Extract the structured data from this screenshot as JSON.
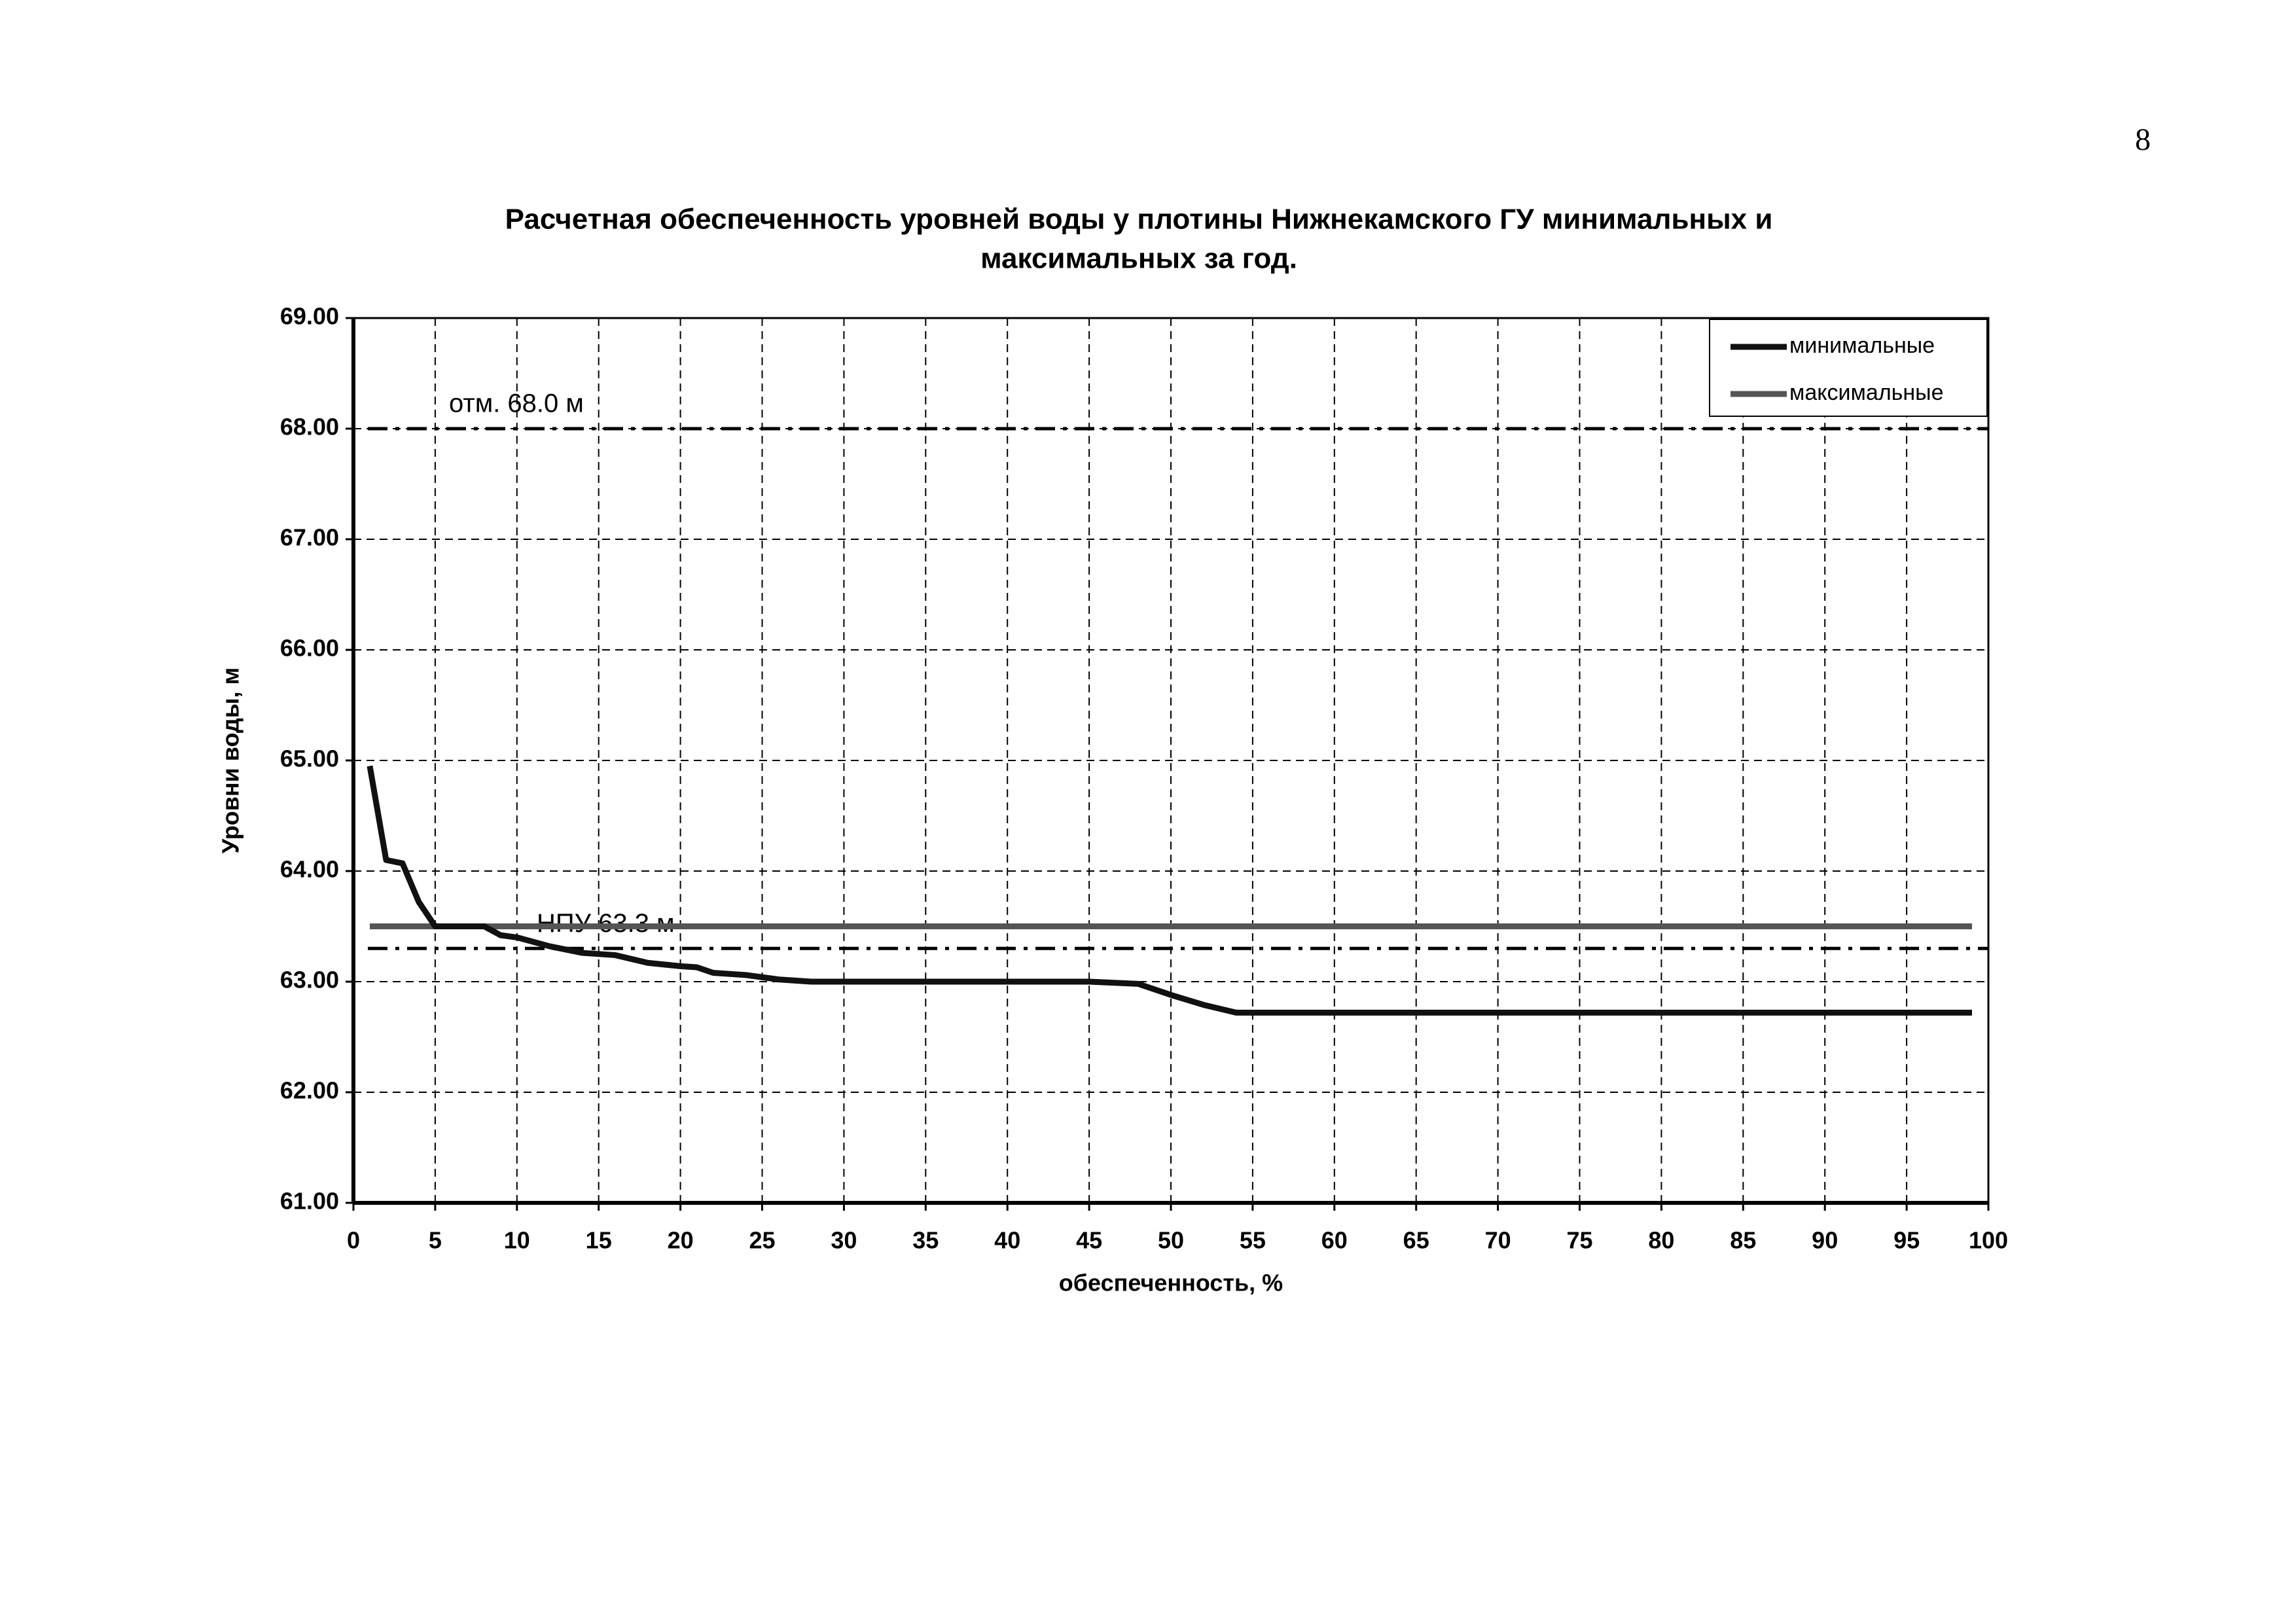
{
  "page_number": "8",
  "chart_data": {
    "type": "line",
    "title": [
      "Расчетная обеспеченность уровней воды у плотины Нижнекамского ГУ  минимальных и",
      "максимальных за год."
    ],
    "xlabel": "обеспеченность, %",
    "ylabel": "Уровни воды, м",
    "xlim": [
      0,
      100
    ],
    "xticks": [
      0,
      5,
      10,
      15,
      20,
      25,
      30,
      35,
      40,
      45,
      50,
      55,
      60,
      65,
      70,
      75,
      80,
      85,
      90,
      95,
      100
    ],
    "ylim": [
      61,
      69
    ],
    "yticks": [
      {
        "value": 61,
        "label": "61.00"
      },
      {
        "value": 62,
        "label": "62.00"
      },
      {
        "value": 63,
        "label": "63.00"
      },
      {
        "value": 64,
        "label": "64.00"
      },
      {
        "value": 65,
        "label": "65.00"
      },
      {
        "value": 66,
        "label": "66.00"
      },
      {
        "value": 67,
        "label": "67.00"
      },
      {
        "value": 68,
        "label": "68.00"
      },
      {
        "value": 69,
        "label": "69.00"
      }
    ],
    "grid": true,
    "legend": "upper right",
    "series": [
      {
        "name": "минимальные",
        "color": "#111111",
        "x": [
          1,
          2,
          3,
          4,
          5,
          8,
          9,
          10,
          12,
          14,
          16,
          18,
          20,
          21,
          22,
          24,
          26,
          28,
          45,
          48,
          50,
          52,
          54,
          99
        ],
        "values": [
          64.95,
          64.1,
          64.07,
          63.72,
          63.5,
          63.5,
          63.42,
          63.4,
          63.32,
          63.26,
          63.24,
          63.17,
          63.14,
          63.13,
          63.08,
          63.06,
          63.02,
          63.0,
          63.0,
          62.98,
          62.88,
          62.79,
          62.72,
          62.72
        ]
      },
      {
        "name": "максимальные",
        "color": "#555555",
        "x": [
          1,
          99
        ],
        "values": [
          63.5,
          63.5
        ]
      }
    ],
    "reference_lines": [
      {
        "value": 68,
        "label": "отм. 68.0 м"
      },
      {
        "value": 63.3,
        "label": "НПУ 63.3 м"
      }
    ]
  }
}
